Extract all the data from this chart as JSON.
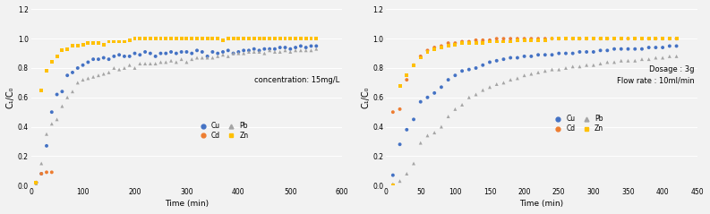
{
  "plot1": {
    "title": "concentration: 15mg/L",
    "xlabel": "Time (min)",
    "ylabel": "C₁/C₀",
    "xlim": [
      0,
      600
    ],
    "ylim": [
      0,
      1.2
    ],
    "xticks": [
      0,
      100,
      200,
      300,
      400,
      500,
      600
    ],
    "yticks": [
      0.0,
      0.2,
      0.4,
      0.6,
      0.8,
      1.0,
      1.2
    ],
    "Cu": {
      "color": "#4472C4",
      "marker": "o",
      "x": [
        10,
        20,
        30,
        40,
        50,
        60,
        70,
        80,
        90,
        100,
        110,
        120,
        130,
        140,
        150,
        160,
        170,
        180,
        190,
        200,
        210,
        220,
        230,
        240,
        250,
        260,
        270,
        280,
        290,
        300,
        310,
        320,
        330,
        340,
        350,
        360,
        370,
        380,
        390,
        400,
        410,
        420,
        430,
        440,
        450,
        460,
        470,
        480,
        490,
        500,
        510,
        520,
        530,
        540,
        550
      ],
      "y": [
        0.02,
        0.08,
        0.27,
        0.5,
        0.62,
        0.64,
        0.75,
        0.77,
        0.8,
        0.82,
        0.84,
        0.86,
        0.86,
        0.87,
        0.86,
        0.88,
        0.89,
        0.88,
        0.88,
        0.9,
        0.89,
        0.91,
        0.9,
        0.88,
        0.9,
        0.9,
        0.91,
        0.9,
        0.91,
        0.91,
        0.9,
        0.92,
        0.91,
        0.88,
        0.91,
        0.9,
        0.91,
        0.92,
        0.9,
        0.91,
        0.92,
        0.92,
        0.93,
        0.92,
        0.93,
        0.93,
        0.93,
        0.94,
        0.94,
        0.93,
        0.94,
        0.95,
        0.94,
        0.95,
        0.95
      ]
    },
    "Cd": {
      "color": "#ED7D31",
      "marker": "o",
      "x": [
        10,
        20,
        30,
        40
      ],
      "y": [
        0.02,
        0.08,
        0.09,
        0.09
      ]
    },
    "Pb": {
      "color": "#A5A5A5",
      "marker": "^",
      "x": [
        10,
        20,
        30,
        40,
        50,
        60,
        70,
        80,
        90,
        100,
        110,
        120,
        130,
        140,
        150,
        160,
        170,
        180,
        190,
        200,
        210,
        220,
        230,
        240,
        250,
        260,
        270,
        280,
        290,
        300,
        310,
        320,
        330,
        340,
        350,
        360,
        370,
        380,
        390,
        400,
        410,
        420,
        430,
        440,
        450,
        460,
        470,
        480,
        490,
        500,
        510,
        520,
        530,
        540,
        550
      ],
      "y": [
        0.01,
        0.15,
        0.35,
        0.42,
        0.45,
        0.54,
        0.6,
        0.64,
        0.7,
        0.72,
        0.73,
        0.74,
        0.75,
        0.76,
        0.77,
        0.8,
        0.79,
        0.8,
        0.82,
        0.8,
        0.83,
        0.83,
        0.83,
        0.83,
        0.84,
        0.84,
        0.85,
        0.84,
        0.86,
        0.84,
        0.86,
        0.87,
        0.87,
        0.87,
        0.87,
        0.88,
        0.89,
        0.88,
        0.9,
        0.9,
        0.9,
        0.91,
        0.91,
        0.91,
        0.9,
        0.92,
        0.91,
        0.91,
        0.92,
        0.91,
        0.92,
        0.92,
        0.92,
        0.92,
        0.93
      ]
    },
    "Zn": {
      "color": "#FFC000",
      "marker": "s",
      "x": [
        10,
        20,
        30,
        40,
        50,
        60,
        70,
        80,
        90,
        100,
        110,
        120,
        130,
        140,
        150,
        160,
        170,
        180,
        190,
        200,
        210,
        220,
        230,
        240,
        250,
        260,
        270,
        280,
        290,
        300,
        310,
        320,
        330,
        340,
        350,
        360,
        370,
        380,
        390,
        400,
        410,
        420,
        430,
        440,
        450,
        460,
        470,
        480,
        490,
        500,
        510,
        520,
        530,
        540,
        550
      ],
      "y": [
        0.02,
        0.65,
        0.78,
        0.84,
        0.88,
        0.92,
        0.93,
        0.95,
        0.95,
        0.96,
        0.97,
        0.97,
        0.97,
        0.96,
        0.98,
        0.98,
        0.98,
        0.98,
        0.99,
        1.0,
        1.0,
        1.0,
        1.0,
        1.0,
        1.0,
        1.0,
        1.0,
        1.0,
        1.0,
        1.0,
        1.0,
        1.0,
        1.0,
        1.0,
        1.0,
        1.0,
        0.99,
        1.0,
        1.0,
        1.0,
        1.0,
        1.0,
        1.0,
        1.0,
        1.0,
        1.0,
        1.0,
        1.0,
        1.0,
        1.0,
        1.0,
        1.0,
        1.0,
        1.0,
        1.0
      ]
    }
  },
  "plot2": {
    "title": "Dosage : 3g\nFlow rate : 10ml/min",
    "xlabel": "Time (min)",
    "ylabel": "C₁/C₀",
    "xlim": [
      0,
      450
    ],
    "ylim": [
      0,
      1.2
    ],
    "xticks": [
      0,
      50,
      100,
      150,
      200,
      250,
      300,
      350,
      400,
      450
    ],
    "yticks": [
      0.0,
      0.2,
      0.4,
      0.6,
      0.8,
      1.0,
      1.2
    ],
    "Cu": {
      "color": "#4472C4",
      "marker": "o",
      "x": [
        10,
        20,
        30,
        40,
        50,
        60,
        70,
        80,
        90,
        100,
        110,
        120,
        130,
        140,
        150,
        160,
        170,
        180,
        190,
        200,
        210,
        220,
        230,
        240,
        250,
        260,
        270,
        280,
        290,
        300,
        310,
        320,
        330,
        340,
        350,
        360,
        370,
        380,
        390,
        400,
        410,
        420
      ],
      "y": [
        0.07,
        0.28,
        0.38,
        0.45,
        0.57,
        0.6,
        0.63,
        0.67,
        0.72,
        0.75,
        0.78,
        0.79,
        0.8,
        0.82,
        0.84,
        0.85,
        0.86,
        0.87,
        0.87,
        0.88,
        0.88,
        0.89,
        0.89,
        0.89,
        0.9,
        0.9,
        0.9,
        0.91,
        0.91,
        0.91,
        0.92,
        0.92,
        0.93,
        0.93,
        0.93,
        0.93,
        0.93,
        0.94,
        0.94,
        0.94,
        0.95,
        0.95
      ]
    },
    "Cd": {
      "color": "#ED7D31",
      "marker": "o",
      "x": [
        10,
        20,
        30,
        40,
        50,
        60,
        70,
        80,
        90,
        100,
        110,
        120,
        130,
        140,
        150,
        160,
        170,
        180,
        190,
        200,
        210,
        220,
        230,
        240,
        250,
        260,
        270,
        280,
        290,
        300,
        310,
        320,
        330,
        340,
        350,
        360,
        370,
        380,
        390,
        400,
        410,
        420
      ],
      "y": [
        0.5,
        0.52,
        0.72,
        0.82,
        0.88,
        0.92,
        0.94,
        0.95,
        0.97,
        0.97,
        0.98,
        0.98,
        0.99,
        0.99,
        0.99,
        1.0,
        1.0,
        1.0,
        1.0,
        1.0,
        1.0,
        1.0,
        1.0,
        1.0,
        1.0,
        1.0,
        1.0,
        1.0,
        1.0,
        1.0,
        1.0,
        1.0,
        1.0,
        1.0,
        1.0,
        1.0,
        1.0,
        1.0,
        1.0,
        1.0,
        1.0,
        1.0
      ]
    },
    "Pb": {
      "color": "#A5A5A5",
      "marker": "^",
      "x": [
        10,
        20,
        30,
        40,
        50,
        60,
        70,
        80,
        90,
        100,
        110,
        120,
        130,
        140,
        150,
        160,
        170,
        180,
        190,
        200,
        210,
        220,
        230,
        240,
        250,
        260,
        270,
        280,
        290,
        300,
        310,
        320,
        330,
        340,
        350,
        360,
        370,
        380,
        390,
        400,
        410,
        420
      ],
      "y": [
        0.01,
        0.03,
        0.08,
        0.15,
        0.29,
        0.34,
        0.36,
        0.4,
        0.47,
        0.52,
        0.55,
        0.6,
        0.62,
        0.65,
        0.67,
        0.69,
        0.7,
        0.72,
        0.73,
        0.75,
        0.76,
        0.77,
        0.78,
        0.79,
        0.79,
        0.8,
        0.81,
        0.81,
        0.82,
        0.82,
        0.83,
        0.84,
        0.84,
        0.85,
        0.85,
        0.85,
        0.86,
        0.86,
        0.87,
        0.87,
        0.88,
        0.88
      ]
    },
    "Zn": {
      "color": "#FFC000",
      "marker": "s",
      "x": [
        10,
        20,
        30,
        40,
        50,
        60,
        70,
        80,
        90,
        100,
        110,
        120,
        130,
        140,
        150,
        160,
        170,
        180,
        190,
        200,
        210,
        220,
        230,
        240,
        250,
        260,
        270,
        280,
        290,
        300,
        310,
        320,
        330,
        340,
        350,
        360,
        370,
        380,
        390,
        400,
        410,
        420
      ],
      "y": [
        0.0,
        0.68,
        0.75,
        0.82,
        0.87,
        0.91,
        0.93,
        0.94,
        0.95,
        0.96,
        0.97,
        0.97,
        0.97,
        0.97,
        0.98,
        0.98,
        0.98,
        0.98,
        0.99,
        0.99,
        0.99,
        0.99,
        0.99,
        1.0,
        1.0,
        1.0,
        1.0,
        1.0,
        1.0,
        1.0,
        1.0,
        1.0,
        1.0,
        1.0,
        1.0,
        1.0,
        1.0,
        1.0,
        1.0,
        1.0,
        1.0,
        1.0
      ]
    }
  },
  "bg_color": "#F2F2F2",
  "plot_bg": "#F2F2F2",
  "spine_color": "#AAAAAA"
}
